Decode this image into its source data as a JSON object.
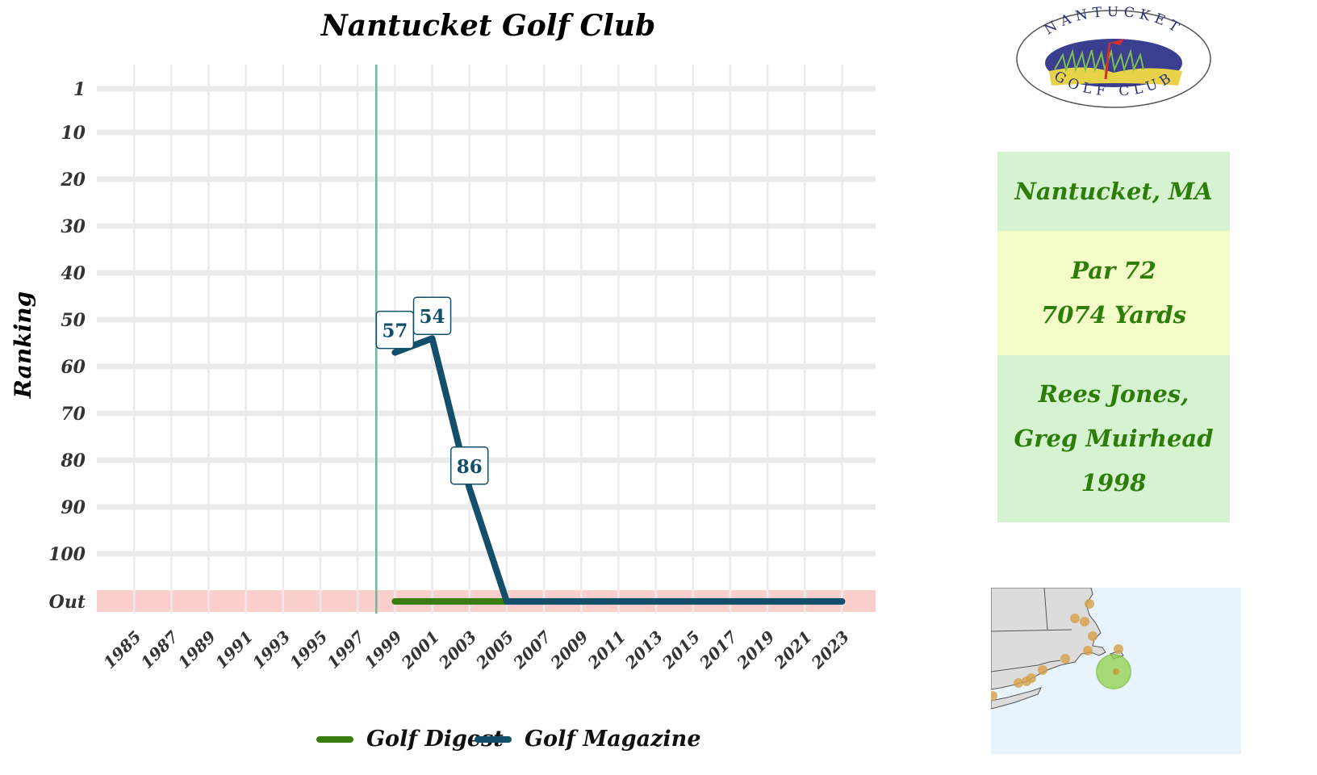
{
  "chart_data": {
    "type": "line",
    "title": "Nantucket Golf Club",
    "ylabel": "Ranking",
    "xlabel": "",
    "x_ticks": [
      "1985",
      "1987",
      "1989",
      "1991",
      "1993",
      "1995",
      "1997",
      "1999",
      "2001",
      "2003",
      "2005",
      "2007",
      "2009",
      "2011",
      "2013",
      "2015",
      "2017",
      "2019",
      "2021",
      "2023"
    ],
    "y_ticks": [
      "1",
      "10",
      "20",
      "30",
      "40",
      "50",
      "60",
      "70",
      "80",
      "90",
      "100",
      "Out"
    ],
    "xlim": [
      1983.0,
      2024.8
    ],
    "opening_year": 1998,
    "grid": true,
    "out_band_color": "#fbcfcb",
    "series": [
      {
        "name": "Golf Digest",
        "color": "#3a7d0e",
        "points": [
          {
            "x": 1999,
            "y": "Out"
          },
          {
            "x": 2005,
            "y": "Out"
          }
        ]
      },
      {
        "name": "Golf Magazine",
        "color": "#134e6b",
        "points": [
          {
            "x": 1999,
            "y": 57
          },
          {
            "x": 2001,
            "y": 54
          },
          {
            "x": 2003,
            "y": 86
          },
          {
            "x": 2005,
            "y": "Out"
          },
          {
            "x": 2007,
            "y": "Out"
          },
          {
            "x": 2009,
            "y": "Out"
          },
          {
            "x": 2011,
            "y": "Out"
          },
          {
            "x": 2013,
            "y": "Out"
          },
          {
            "x": 2015,
            "y": "Out"
          },
          {
            "x": 2017,
            "y": "Out"
          },
          {
            "x": 2019,
            "y": "Out"
          },
          {
            "x": 2021,
            "y": "Out"
          },
          {
            "x": 2023,
            "y": "Out"
          }
        ],
        "labels": [
          {
            "x": 1999,
            "y": 57,
            "text": "57"
          },
          {
            "x": 2001,
            "y": 54,
            "text": "54"
          },
          {
            "x": 2003,
            "y": 86,
            "text": "86"
          }
        ]
      }
    ],
    "legend_position": "bottom"
  },
  "logo": {
    "top_text": "NANTUCKET",
    "bottom_text": "GOLF CLUB"
  },
  "info": {
    "location": "Nantucket, MA",
    "par": "Par 72",
    "yards": "7074 Yards",
    "architect_1": "Rees Jones,",
    "architect_2": "Greg Muirhead",
    "year": "1998"
  },
  "colors": {
    "info_text": "#2e7d0a",
    "box_green": "#d5f3d1",
    "box_yellow": "#f4fcc8",
    "opening_line": "#5fbf9a",
    "map_water": "#e8f3fc",
    "map_land": "#dcdcdc",
    "map_dot": "#d4a048",
    "map_highlight": "#8fd24a"
  }
}
